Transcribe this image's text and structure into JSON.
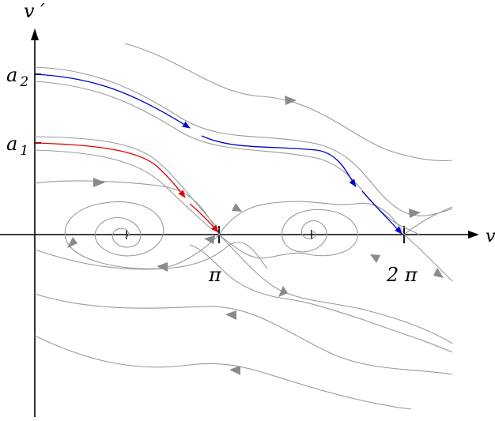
{
  "labels": {
    "y_axis": "v ′",
    "x_axis": "v",
    "pi": "π",
    "two_pi": "2 π",
    "a1": "a",
    "a1_sub": "1",
    "a2": "a",
    "a2_sub": "2"
  },
  "colors": {
    "axes": "#000000",
    "trajectories": "#9a9a9a",
    "arrowheads": "#8a8a8a",
    "highlight_upper": "#0000cc",
    "highlight_lower": "#e00000"
  }
}
